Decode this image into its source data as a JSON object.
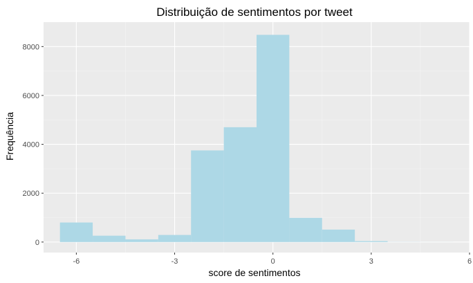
{
  "chart_data": {
    "type": "bar",
    "title": "Distribuição de sentimentos por tweet",
    "xlabel": "score de sentimentos",
    "ylabel": "Frequência",
    "bins": [
      {
        "x0": -6.5,
        "x1": -5.5,
        "count": 800
      },
      {
        "x0": -5.5,
        "x1": -4.5,
        "count": 260
      },
      {
        "x0": -4.5,
        "x1": -3.5,
        "count": 110
      },
      {
        "x0": -3.5,
        "x1": -2.5,
        "count": 290
      },
      {
        "x0": -2.5,
        "x1": -1.5,
        "count": 3750
      },
      {
        "x0": -1.5,
        "x1": -0.5,
        "count": 4700
      },
      {
        "x0": -0.5,
        "x1": 0.5,
        "count": 8480
      },
      {
        "x0": 0.5,
        "x1": 1.5,
        "count": 990
      },
      {
        "x0": 1.5,
        "x1": 2.5,
        "count": 510
      },
      {
        "x0": 2.5,
        "x1": 3.5,
        "count": 40
      },
      {
        "x0": 3.5,
        "x1": 4.5,
        "count": 5
      },
      {
        "x0": 4.5,
        "x1": 5.5,
        "count": 2
      }
    ],
    "xlim": [
      -7,
      6
    ],
    "ylim": [
      -430,
      9000
    ],
    "xticks": [
      -6,
      -3,
      0,
      3,
      6
    ],
    "xtick_labels": [
      "-6",
      "-3",
      "0",
      "3",
      "6"
    ],
    "yticks": [
      0,
      2000,
      4000,
      6000,
      8000
    ],
    "ytick_labels": [
      "0",
      "2000",
      "4000",
      "6000",
      "8000"
    ],
    "grid": true,
    "colors": {
      "bar": "#add8e6",
      "panel": "#ebebeb",
      "grid_major": "#ffffff",
      "grid_minor": "#f5f5f5"
    }
  }
}
